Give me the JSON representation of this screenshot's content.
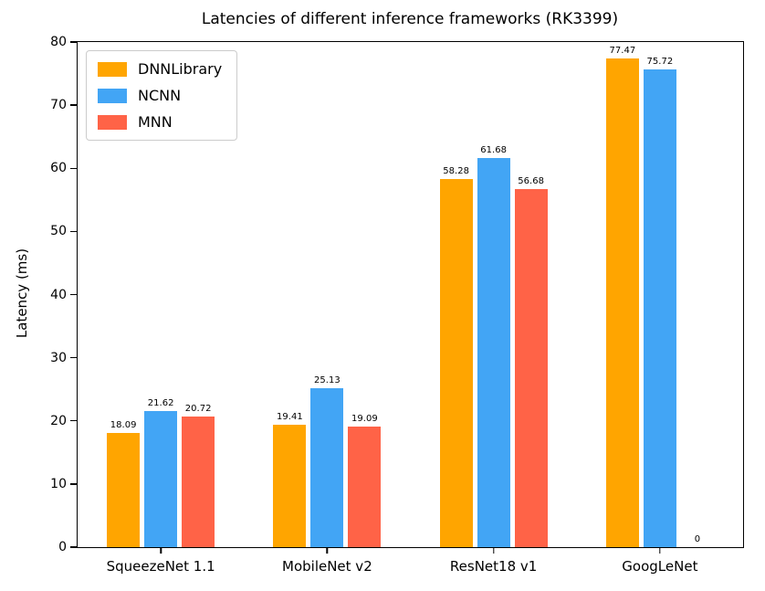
{
  "chart_data": {
    "type": "bar",
    "title": "Latencies of different inference frameworks (RK3399)",
    "xlabel": "",
    "ylabel": "Latency (ms)",
    "ylim": [
      0,
      80
    ],
    "yticks": [
      0,
      10,
      20,
      30,
      40,
      50,
      60,
      70,
      80
    ],
    "grid": false,
    "legend_position": "upper left",
    "value_labels": true,
    "categories": [
      "SqueezeNet 1.1",
      "MobileNet v2",
      "ResNet18 v1",
      "GoogLeNet"
    ],
    "series": [
      {
        "name": "DNNLibrary",
        "color": "#FFA500",
        "values": [
          18.09,
          19.41,
          58.28,
          77.47
        ]
      },
      {
        "name": "NCNN",
        "color": "#42A5F5",
        "values": [
          21.62,
          25.13,
          61.68,
          75.72
        ]
      },
      {
        "name": "MNN",
        "color": "#FF6347",
        "values": [
          20.72,
          19.09,
          56.68,
          0
        ]
      }
    ]
  }
}
